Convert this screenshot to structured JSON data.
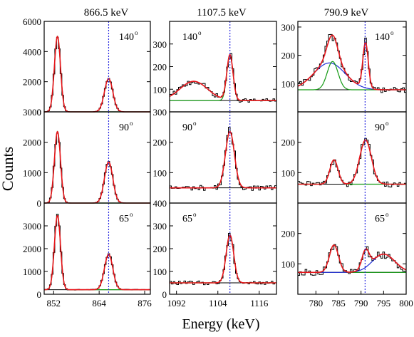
{
  "figure": {
    "ylabel": "Counts",
    "xlabel": "Energy (keV)",
    "columns": [
      "866.5 keV",
      "1107.5 keV",
      "790.9 keV"
    ]
  },
  "colors": {
    "data": "#000000",
    "fit": "#e8151b",
    "background": "#1f2fd6",
    "peak": "#139a13",
    "marker": "#2a2ae0"
  },
  "chart_data": [
    {
      "type": "line",
      "column": 0,
      "row": 0,
      "angle_label": "140",
      "degree": "o",
      "xlim": [
        849.5,
        877.5
      ],
      "ylim": [
        0,
        6000
      ],
      "ytick_labels": [
        "0",
        "2000",
        "4000",
        "6000"
      ],
      "xtick_labels": [],
      "marker_x": 866.5,
      "peaks": [
        {
          "center": 853.0,
          "amplitude": 5000,
          "width": 0.8
        },
        {
          "center": 866.5,
          "amplitude": 2200,
          "width": 1.1
        }
      ],
      "background_level": 0,
      "series": [
        {
          "values_note": "histogram + fit"
        }
      ]
    },
    {
      "type": "line",
      "column": 0,
      "row": 1,
      "angle_label": "90",
      "degree": "o",
      "xlim": [
        849.5,
        877.5
      ],
      "ylim": [
        0,
        3000
      ],
      "ytick_labels": [
        "0",
        "1000",
        "2000",
        "3000"
      ],
      "xtick_labels": [],
      "marker_x": 866.5,
      "peaks": [
        {
          "center": 853.0,
          "amplitude": 2350,
          "width": 0.8
        },
        {
          "center": 866.5,
          "amplitude": 1350,
          "width": 1.1
        }
      ],
      "background_level": 0
    },
    {
      "type": "line",
      "column": 0,
      "row": 2,
      "angle_label": "65",
      "degree": "o",
      "xlim": [
        849.5,
        877.5
      ],
      "ylim": [
        0,
        4000
      ],
      "ytick_labels": [
        "0",
        "1000",
        "2000",
        "3000"
      ],
      "xticks": [
        852,
        864,
        876
      ],
      "xtick_labels": [
        "852",
        "864",
        "876"
      ],
      "marker_x": 866.5,
      "peaks": [
        {
          "center": 853.0,
          "amplitude": 3250,
          "width": 0.8
        },
        {
          "center": 866.5,
          "amplitude": 1550,
          "width": 1.1
        }
      ],
      "background_level": 200
    },
    {
      "type": "line",
      "column": 1,
      "row": 0,
      "angle_label": "140",
      "degree": "o",
      "xlim": [
        1090,
        1121
      ],
      "ylim": [
        0,
        400
      ],
      "ytick_labels": [
        "100",
        "200",
        "300"
      ],
      "xtick_labels": [],
      "marker_x": 1107.5,
      "peaks": [
        {
          "center": 1107.5,
          "amplitude": 200,
          "width": 0.9
        },
        {
          "center": 1097,
          "amplitude": 85,
          "width": 4
        }
      ],
      "background_level": 50
    },
    {
      "type": "line",
      "column": 1,
      "row": 1,
      "angle_label": "90",
      "degree": "o",
      "xlim": [
        1090,
        1121
      ],
      "ylim": [
        0,
        300
      ],
      "ytick_labels": [
        "100",
        "200",
        "300"
      ],
      "xtick_labels": [],
      "marker_x": 1107.5,
      "peaks": [
        {
          "center": 1107.5,
          "amplitude": 185,
          "width": 1.3
        }
      ],
      "background_level": 50
    },
    {
      "type": "line",
      "column": 1,
      "row": 2,
      "angle_label": "65",
      "degree": "o",
      "xlim": [
        1090,
        1121
      ],
      "ylim": [
        0,
        400
      ],
      "ytick_labels": [
        "0",
        "100",
        "200",
        "300",
        "400"
      ],
      "xticks": [
        1092,
        1104,
        1116
      ],
      "xtick_labels": [
        "1092",
        "1104",
        "1116"
      ],
      "marker_x": 1107.5,
      "peaks": [
        {
          "center": 1107.5,
          "amplitude": 210,
          "width": 1.1
        }
      ],
      "background_level": 50
    },
    {
      "type": "line",
      "column": 2,
      "row": 0,
      "angle_label": "140",
      "degree": "o",
      "xlim": [
        776,
        800
      ],
      "ylim": [
        0,
        320
      ],
      "ytick_labels": [
        "100",
        "200",
        "300"
      ],
      "xtick_labels": [],
      "marker_x": 790.9,
      "peaks": [
        {
          "center": 783.7,
          "amplitude": 100,
          "width": 1.2
        },
        {
          "center": 791.0,
          "amplitude": 160,
          "width": 0.6
        },
        {
          "center": 783.0,
          "amplitude": 95,
          "width": 3.5
        }
      ],
      "background_level": 78
    },
    {
      "type": "line",
      "column": 2,
      "row": 1,
      "angle_label": "90",
      "degree": "o",
      "xlim": [
        776,
        800
      ],
      "ylim": [
        0,
        300
      ],
      "ytick_labels": [
        "100",
        "200"
      ],
      "xtick_labels": [],
      "marker_x": 790.9,
      "peaks": [
        {
          "center": 784.0,
          "amplitude": 80,
          "width": 0.9
        },
        {
          "center": 791.0,
          "amplitude": 145,
          "width": 1.3
        }
      ],
      "background_level": 62
    },
    {
      "type": "line",
      "column": 2,
      "row": 2,
      "angle_label": "65",
      "degree": "o",
      "xlim": [
        776,
        800
      ],
      "ylim": [
        0,
        300
      ],
      "ytick_labels": [
        "100",
        "200"
      ],
      "xticks": [
        780,
        785,
        790,
        795,
        800
      ],
      "xtick_labels": [
        "780",
        "785",
        "790",
        "795",
        "800"
      ],
      "marker_x": 790.9,
      "peaks": [
        {
          "center": 784.0,
          "amplitude": 90,
          "width": 1.0
        },
        {
          "center": 791.0,
          "amplitude": 60,
          "width": 0.8
        },
        {
          "center": 795.0,
          "amplitude": 60,
          "width": 2.5
        }
      ],
      "background_level": 72
    }
  ]
}
